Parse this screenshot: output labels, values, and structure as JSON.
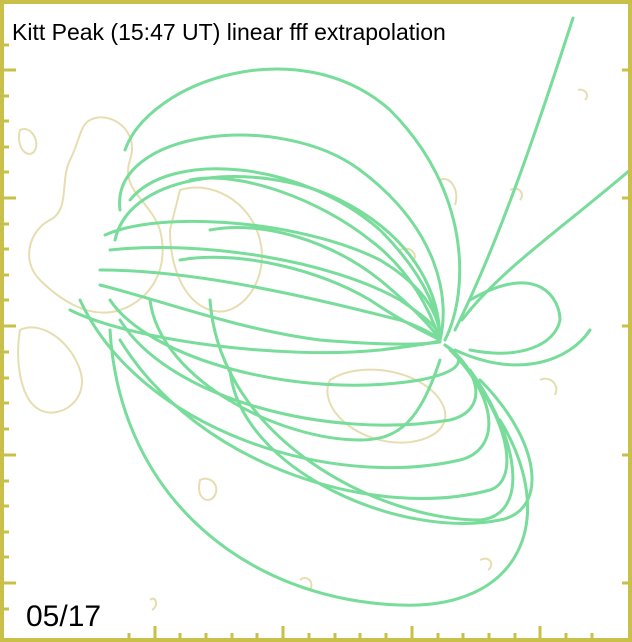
{
  "title": "Kitt Peak (15:47 UT) linear fff extrapolation",
  "date_label": "05/17"
}
